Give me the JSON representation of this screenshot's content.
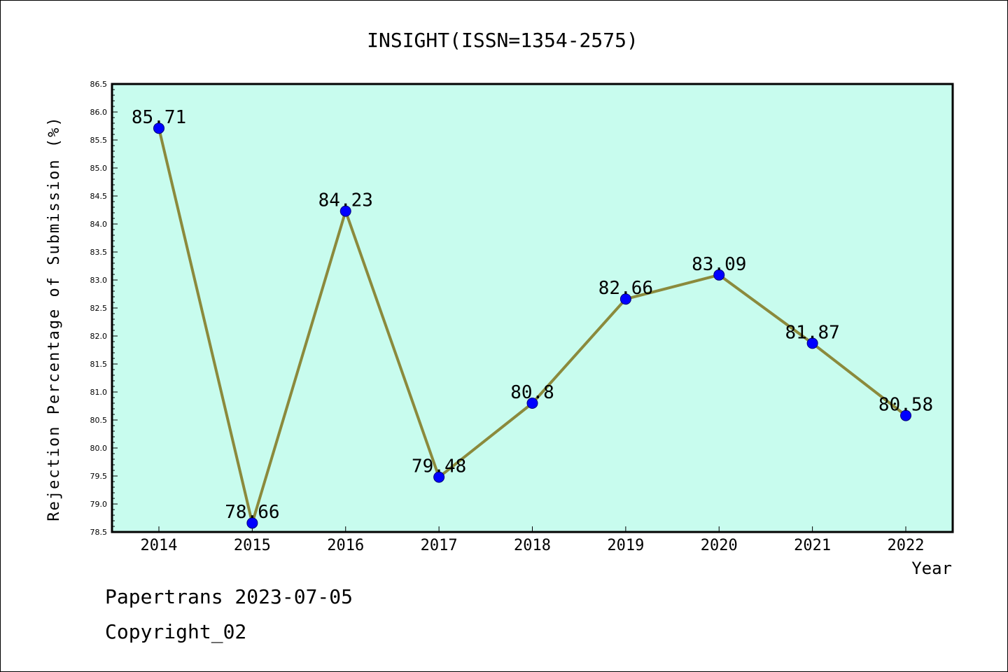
{
  "chart_data": {
    "type": "line",
    "title": "INSIGHT(ISSN=1354-2575)",
    "xlabel": "Year",
    "ylabel": "Rejection Percentage of Submission (%)",
    "categories": [
      "2014",
      "2015",
      "2016",
      "2017",
      "2018",
      "2019",
      "2020",
      "2021",
      "2022"
    ],
    "series": [
      {
        "values": [
          85.71,
          78.66,
          84.23,
          79.48,
          80.8,
          82.66,
          83.09,
          81.87,
          80.58
        ],
        "labels": [
          "85.71",
          "78.66",
          "84.23",
          "79.48",
          "80.8",
          "82.66",
          "83.09",
          "81.87",
          "80.58"
        ]
      }
    ],
    "ylim": [
      78.5,
      86.5
    ],
    "yticks": [
      "78.5",
      "79.0",
      "79.5",
      "80.0",
      "80.5",
      "81.0",
      "81.5",
      "82.0",
      "82.5",
      "83.0",
      "83.5",
      "84.0",
      "84.5",
      "85.0",
      "85.5",
      "86.0",
      "86.5"
    ],
    "grid": false,
    "legend": "none",
    "colors": {
      "plot_background": "#c8fcee",
      "line": "#8b8a3c",
      "marker": "#0000ff"
    }
  },
  "footer": {
    "line1": "Papertrans 2023-07-05",
    "line2": "Copyright_02"
  }
}
